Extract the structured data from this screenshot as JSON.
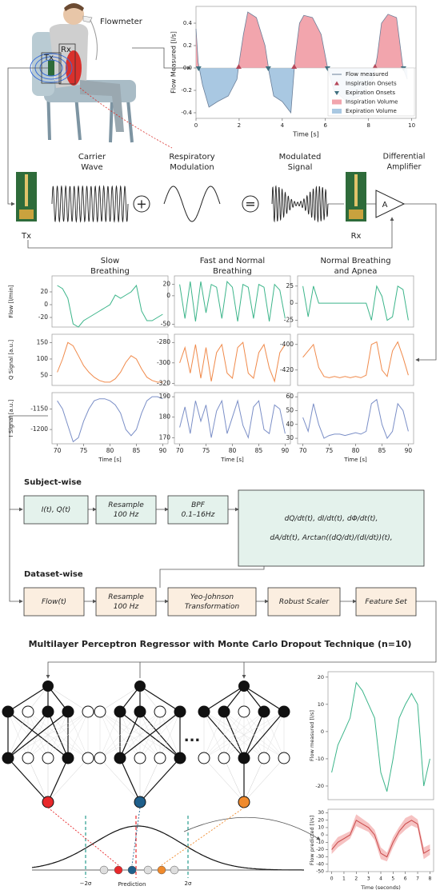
{
  "illustration": {
    "flowmeter": "Flowmeter",
    "tx": "Tx",
    "rx": "Rx"
  },
  "charts": {
    "flow": {
      "type": "line",
      "y_label": "Flow Measured [l/s]",
      "x_label": "Time [s]",
      "xlim": [
        0,
        10.2
      ],
      "ylim": [
        -0.45,
        0.55
      ],
      "xticks": [
        0,
        2,
        4,
        6,
        8,
        10
      ],
      "yticks": [
        -0.4,
        -0.2,
        {
          "value": 0,
          "label": "0.0"
        },
        0.2,
        0.4
      ],
      "x": [
        0,
        0.1,
        0.3,
        0.6,
        1.0,
        1.5,
        1.9,
        2.0,
        2.2,
        2.4,
        2.8,
        3.2,
        3.4,
        3.6,
        4.0,
        4.4,
        4.6,
        4.8,
        5.0,
        5.4,
        5.8,
        6.1,
        6.4,
        7.0,
        7.6,
        8.2,
        8.4,
        8.6,
        8.9,
        9.3,
        9.6,
        9.8
      ],
      "series": [
        {
          "name": "Flow measured",
          "color": "#6b7f99",
          "values": [
            0.35,
            0.05,
            -0.15,
            -0.35,
            -0.3,
            -0.25,
            -0.1,
            0.05,
            0.3,
            0.5,
            0.45,
            0.2,
            -0.05,
            -0.25,
            -0.3,
            -0.4,
            0.1,
            0.4,
            0.47,
            0.45,
            0.3,
            0.0,
            -0.2,
            -0.3,
            -0.25,
            -0.1,
            0.1,
            0.4,
            0.48,
            0.45,
            0.0,
            -0.1
          ]
        }
      ],
      "inspiration_onsets": {
        "name": "Inspiration Onsets",
        "color": "#b5485a",
        "x": [
          1.98,
          4.55,
          8.3
        ]
      },
      "expiration_onsets": {
        "name": "Expiration Onsets",
        "color": "#3f6f7f",
        "x": [
          0.12,
          3.35,
          6.1,
          9.62
        ]
      },
      "areas": [
        {
          "name": "Inspiration Volume",
          "color": "#f2a5ad"
        },
        {
          "name": "Expiration Volume",
          "color": "#a9c8e2"
        }
      ]
    },
    "measured": {
      "type": "line",
      "y_label": "Flow measured [l/s]",
      "xlim": [
        -0.3,
        8.3
      ],
      "ylim": [
        -25,
        22
      ],
      "yticks": [
        -20,
        -10,
        0,
        10,
        20
      ],
      "x": [
        0,
        0.5,
        1,
        1.5,
        2,
        2.5,
        3,
        3.5,
        4,
        4.5,
        5,
        5.5,
        6,
        6.5,
        7,
        7.5,
        8
      ],
      "series": [
        {
          "color": "#3cb58a",
          "values": [
            -15,
            -5,
            0,
            5,
            18,
            15,
            10,
            5,
            -15,
            -22,
            -10,
            5,
            10,
            14,
            10,
            -20,
            -10
          ]
        }
      ]
    },
    "predicted": {
      "type": "line",
      "y_label": "Flow predicted [l/s]",
      "x_label": "Time (seconds)",
      "xlim": [
        -0.3,
        8.3
      ],
      "ylim": [
        -50,
        35
      ],
      "xticks": [
        0,
        1,
        2,
        3,
        4,
        5,
        6,
        7,
        8
      ],
      "yticks": [
        -50,
        -40,
        -30,
        -20,
        -10,
        0,
        10,
        20,
        30
      ],
      "x": [
        0,
        0.5,
        1,
        1.5,
        2,
        2.5,
        3,
        3.5,
        4,
        4.5,
        5,
        5.5,
        6,
        6.5,
        7,
        7.5,
        8
      ],
      "series": [
        {
          "color": "#c94a4a",
          "values": [
            -20,
            -10,
            -5,
            0,
            20,
            15,
            10,
            0,
            -25,
            -30,
            -10,
            5,
            15,
            20,
            15,
            -25,
            -20
          ],
          "errors": [
            6,
            7,
            6,
            5,
            8,
            7,
            6,
            7,
            8,
            6,
            7,
            6,
            8,
            7,
            6,
            8,
            7
          ]
        }
      ]
    }
  },
  "modulation": {
    "carrier": [
      "Carrier",
      "Wave"
    ],
    "respiratory": [
      "Respiratory",
      "Modulation"
    ],
    "modulated": [
      "Modulated",
      "Signal"
    ],
    "amplifier": [
      "Differential",
      "Amplifier"
    ],
    "plus": "+",
    "equals": "=",
    "tx": "Tx",
    "rx": "Rx",
    "amp_symbol": "A"
  },
  "signals": {
    "type": "line",
    "x_label": "Time [s]",
    "xlim": [
      69,
      91
    ],
    "xticks": [
      70,
      75,
      80,
      85,
      90
    ],
    "x": [
      70,
      71,
      72,
      73,
      74,
      75,
      76,
      77,
      78,
      79,
      80,
      81,
      82,
      83,
      84,
      85,
      86,
      87,
      88,
      89,
      90
    ],
    "columns": [
      {
        "title": [
          "Slow",
          "Breathing"
        ]
      },
      {
        "title": [
          "Fast and Normal",
          "Breathing"
        ]
      },
      {
        "title": [
          "Normal Breathing",
          "and Apnea"
        ]
      }
    ],
    "rows": [
      {
        "label": "Flow [l/min]",
        "color": "#3cb58a"
      },
      {
        "label": "Q Signal [a.u.]",
        "color": "#f08a4b"
      },
      {
        "label": "I Signal [a.u.]",
        "color": "#7b8fc7"
      }
    ],
    "panels": [
      [
        {
          "ylim": [
            -35,
            45
          ],
          "yticks": [
            -20,
            0,
            20
          ],
          "values": [
            30,
            25,
            10,
            -30,
            -35,
            -25,
            -20,
            -15,
            -10,
            -5,
            0,
            15,
            10,
            15,
            20,
            30,
            -10,
            -25,
            -25,
            -20,
            -15
          ]
        },
        {
          "ylim": [
            -55,
            35
          ],
          "yticks": [
            -50,
            0,
            20
          ],
          "values": [
            20,
            -40,
            25,
            -45,
            25,
            -30,
            20,
            15,
            -40,
            25,
            15,
            -45,
            20,
            15,
            -40,
            20,
            15,
            -45,
            20,
            10,
            -40
          ]
        },
        {
          "ylim": [
            -35,
            40
          ],
          "yticks": [
            -25,
            0,
            25
          ],
          "values": [
            25,
            -20,
            25,
            0,
            0,
            0,
            0,
            0,
            0,
            0,
            0,
            0,
            0,
            -25,
            25,
            10,
            -25,
            -20,
            25,
            20,
            -25
          ]
        }
      ],
      [
        {
          "ylim": [
            20,
            175
          ],
          "yticks": [
            50,
            100,
            150
          ],
          "values": [
            60,
            100,
            150,
            140,
            110,
            80,
            60,
            45,
            35,
            30,
            30,
            40,
            60,
            90,
            110,
            100,
            70,
            45,
            35,
            30,
            30
          ]
        },
        {
          "ylim": [
            -322,
            -272
          ],
          "yticks": [
            -320,
            -300,
            -280
          ],
          "values": [
            -300,
            -285,
            -310,
            -282,
            -315,
            -285,
            -318,
            -290,
            -282,
            -310,
            -315,
            -285,
            -280,
            -310,
            -315,
            -290,
            -282,
            -305,
            -318,
            -290,
            -282
          ]
        },
        {
          "ylim": [
            -432,
            -392
          ],
          "yticks": [
            -420,
            -400
          ],
          "values": [
            -410,
            -405,
            -400,
            -418,
            -425,
            -426,
            -425,
            -426,
            -425,
            -426,
            -425,
            -426,
            -424,
            -400,
            -398,
            -420,
            -425,
            -405,
            -398,
            -410,
            -424
          ]
        }
      ],
      [
        {
          "ylim": [
            -1235,
            -1110
          ],
          "yticks": [
            -1200,
            -1150
          ],
          "values": [
            -1130,
            -1150,
            -1190,
            -1230,
            -1220,
            -1180,
            -1150,
            -1130,
            -1125,
            -1125,
            -1130,
            -1140,
            -1160,
            -1200,
            -1215,
            -1200,
            -1160,
            -1130,
            -1120,
            -1120,
            -1125
          ]
        },
        {
          "ylim": [
            167,
            192
          ],
          "yticks": [
            170,
            180,
            190
          ],
          "values": [
            175,
            185,
            172,
            188,
            178,
            186,
            170,
            183,
            188,
            172,
            180,
            188,
            176,
            170,
            185,
            188,
            174,
            172,
            186,
            184,
            172
          ]
        },
        {
          "ylim": [
            26,
            63
          ],
          "yticks": [
            30,
            40,
            50,
            60
          ],
          "values": [
            45,
            35,
            55,
            40,
            30,
            32,
            33,
            33,
            32,
            33,
            34,
            33,
            35,
            55,
            58,
            40,
            30,
            35,
            55,
            50,
            35
          ]
        }
      ]
    ]
  },
  "pipeline": {
    "subject_label": "Subject-wise",
    "subject_steps": [
      [
        "I(t), Q(t)"
      ],
      [
        "Resample",
        "100 Hz"
      ],
      [
        "BPF",
        "0.1–16Hz"
      ],
      [
        "dQ/dt(t), dI/dt(t), dΦ/dt(t),",
        "dA/dt(t), Arctan((dQ/dt)/(dI/dt))(t),"
      ]
    ],
    "dataset_label": "Dataset-wise",
    "dataset_steps": [
      [
        "Flow(t)"
      ],
      [
        "Resample",
        "100 Hz"
      ],
      [
        "Yeo-Johnson",
        "Transformation"
      ],
      [
        "Robust Scaler"
      ],
      [
        "Feature Set"
      ]
    ]
  },
  "model": {
    "title": "Multilayer Perceptron Regressor with Monte Carlo Dropout Technique (n=10)",
    "ellipsis": "...",
    "minus2sigma": "−2σ",
    "prediction": "Prediction",
    "plus2sigma": "2σ"
  }
}
